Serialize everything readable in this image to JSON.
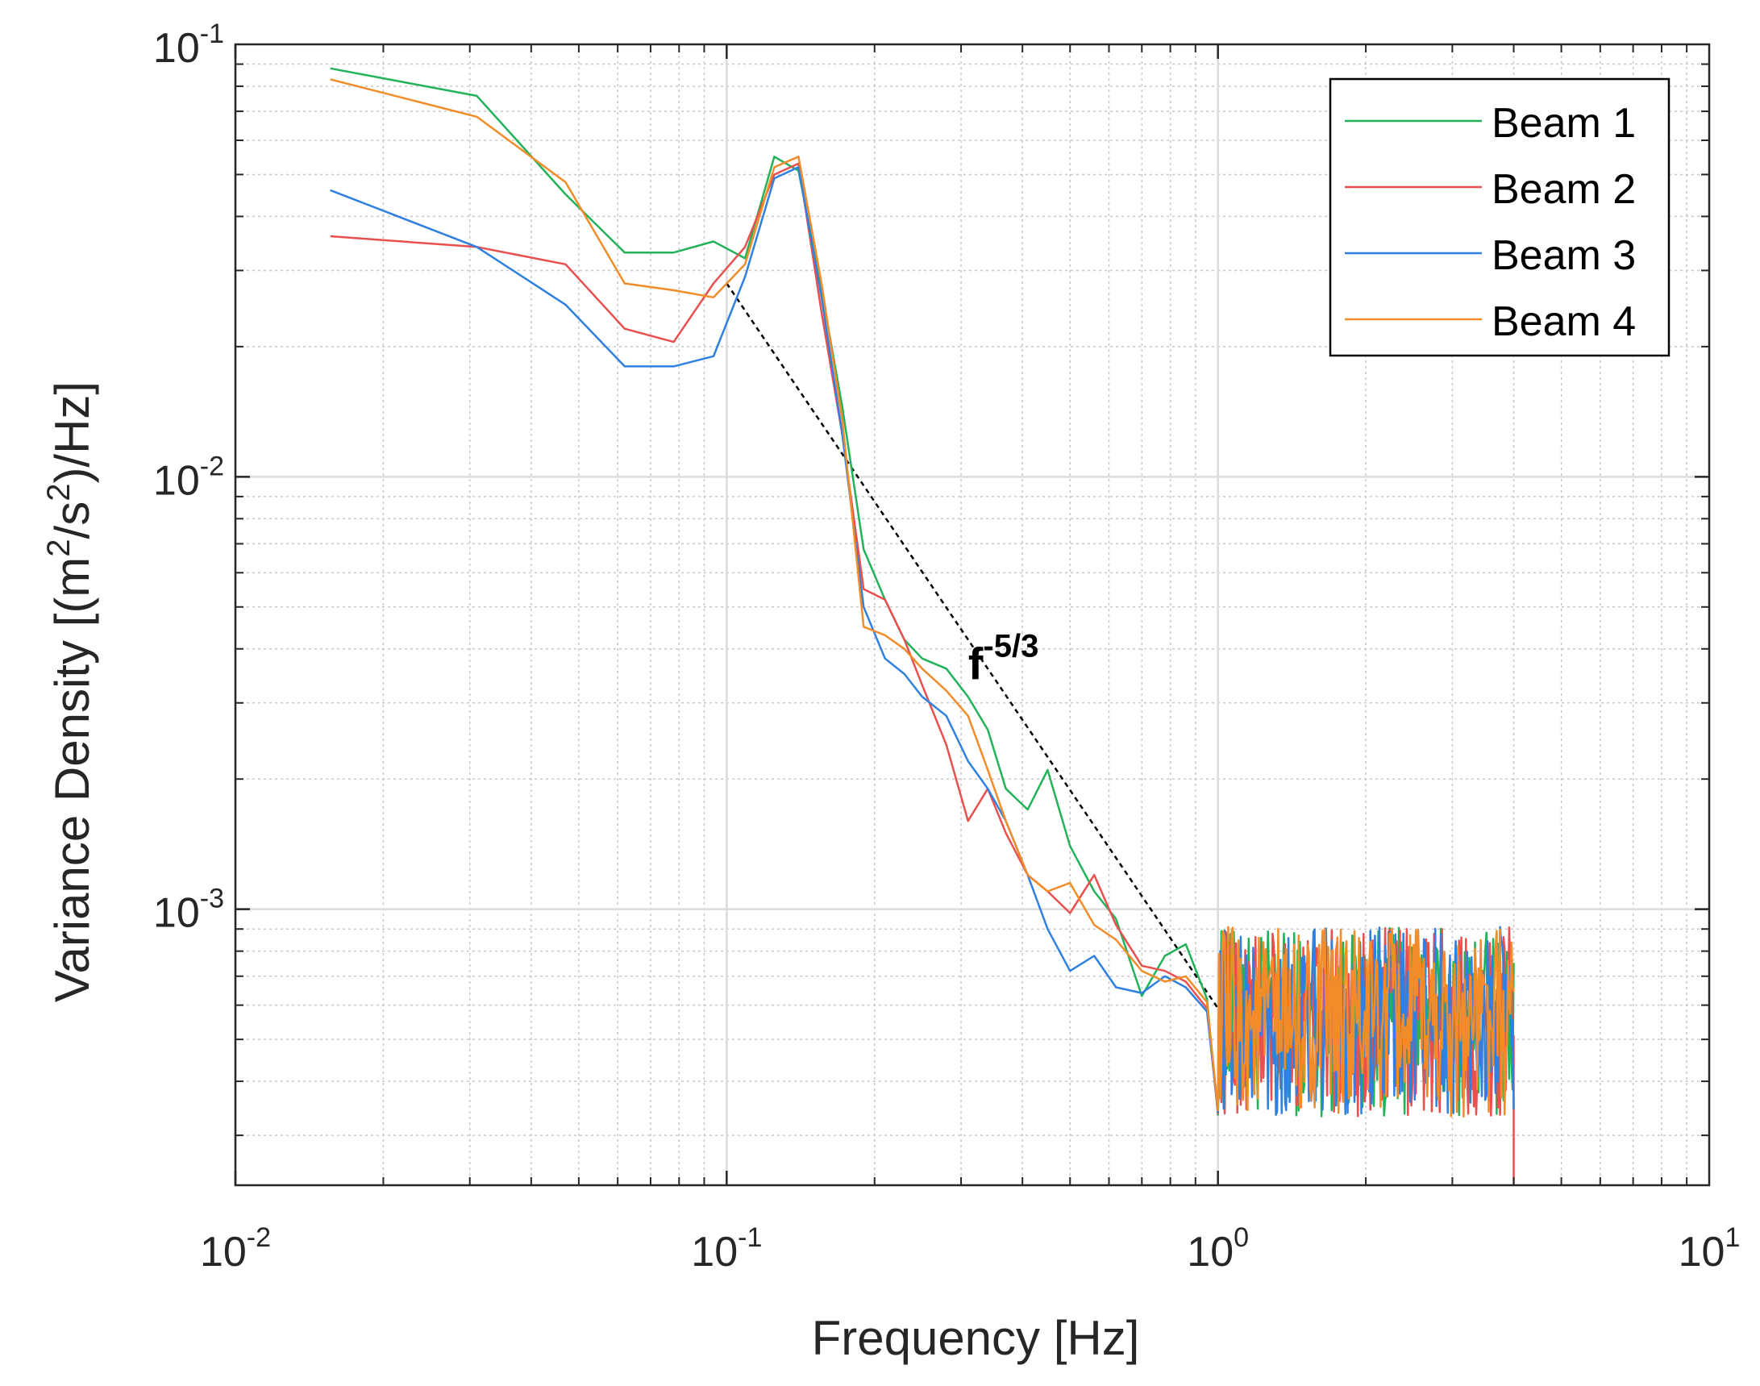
{
  "chart_data": {
    "type": "line",
    "xscale": "log",
    "yscale": "log",
    "xlabel": "Frequency [Hz]",
    "ylabel_parts": [
      "Variance Density [(m",
      "2",
      "/s",
      "2",
      ")/Hz]"
    ],
    "xlim": [
      0.01,
      10
    ],
    "ylim": [
      0.00023,
      0.1
    ],
    "grid": true,
    "minor_grid": true,
    "x_ticks": [
      {
        "base": "10",
        "exp": "-2",
        "value": 0.01
      },
      {
        "base": "10",
        "exp": "-1",
        "value": 0.1
      },
      {
        "base": "10",
        "exp": "0",
        "value": 1
      },
      {
        "base": "10",
        "exp": "1",
        "value": 10
      }
    ],
    "y_ticks": [
      {
        "base": "10",
        "exp": "-3",
        "value": 0.001
      },
      {
        "base": "10",
        "exp": "-2",
        "value": 0.01
      },
      {
        "base": "10",
        "exp": "-1",
        "value": 0.1
      }
    ],
    "legend_position": "top-right",
    "annotation": {
      "base": "f",
      "exp": "-5/3",
      "x": 0.31,
      "y": 0.0034
    },
    "reference_line": {
      "label": "f-5/3 slope",
      "color": "#000000",
      "x": [
        0.1,
        1.0
      ],
      "y": [
        0.028,
        0.00059
      ]
    },
    "noise_range": {
      "x_start": 1.0,
      "x_end": 4.0,
      "y_center": 0.00055,
      "spread": 0.22
    },
    "series": [
      {
        "name": "Beam 1",
        "color": "#22B35A",
        "x": [
          0.0156,
          0.031,
          0.047,
          0.062,
          0.078,
          0.094,
          0.109,
          0.125,
          0.14,
          0.156,
          0.172,
          0.19,
          0.21,
          0.23,
          0.25,
          0.28,
          0.31,
          0.34,
          0.37,
          0.41,
          0.45,
          0.5,
          0.56,
          0.62,
          0.7,
          0.78,
          0.86,
          0.95
        ],
        "y": [
          0.088,
          0.076,
          0.045,
          0.033,
          0.033,
          0.035,
          0.032,
          0.055,
          0.051,
          0.027,
          0.0145,
          0.0068,
          0.0052,
          0.0042,
          0.0038,
          0.0036,
          0.0031,
          0.0026,
          0.0019,
          0.0017,
          0.0021,
          0.0014,
          0.0011,
          0.00095,
          0.00063,
          0.00078,
          0.00083,
          0.00062
        ]
      },
      {
        "name": "Beam 2",
        "color": "#EA4F4F",
        "x": [
          0.0156,
          0.031,
          0.047,
          0.062,
          0.078,
          0.094,
          0.109,
          0.125,
          0.14,
          0.156,
          0.172,
          0.19,
          0.21,
          0.23,
          0.25,
          0.28,
          0.31,
          0.34,
          0.37,
          0.41,
          0.45,
          0.5,
          0.56,
          0.62,
          0.7,
          0.78,
          0.86,
          0.95
        ],
        "y": [
          0.036,
          0.034,
          0.031,
          0.022,
          0.0205,
          0.028,
          0.034,
          0.05,
          0.053,
          0.024,
          0.0125,
          0.0055,
          0.0052,
          0.0042,
          0.0033,
          0.0024,
          0.0016,
          0.0019,
          0.0015,
          0.0012,
          0.0011,
          0.00098,
          0.0012,
          0.00092,
          0.00074,
          0.00072,
          0.00068,
          0.00059
        ]
      },
      {
        "name": "Beam 3",
        "color": "#2F80E0",
        "x": [
          0.0156,
          0.031,
          0.047,
          0.062,
          0.078,
          0.094,
          0.109,
          0.125,
          0.14,
          0.156,
          0.172,
          0.19,
          0.21,
          0.23,
          0.25,
          0.28,
          0.31,
          0.34,
          0.37,
          0.41,
          0.45,
          0.5,
          0.56,
          0.62,
          0.7,
          0.78,
          0.86,
          0.95
        ],
        "y": [
          0.046,
          0.034,
          0.025,
          0.018,
          0.018,
          0.019,
          0.029,
          0.049,
          0.052,
          0.026,
          0.0125,
          0.005,
          0.0038,
          0.0035,
          0.0031,
          0.0028,
          0.0022,
          0.0019,
          0.0016,
          0.0012,
          0.0009,
          0.00072,
          0.00078,
          0.00066,
          0.00064,
          0.0007,
          0.00066,
          0.00058
        ]
      },
      {
        "name": "Beam 4",
        "color": "#F28C28",
        "x": [
          0.0156,
          0.031,
          0.047,
          0.062,
          0.078,
          0.094,
          0.109,
          0.125,
          0.14,
          0.156,
          0.172,
          0.19,
          0.21,
          0.23,
          0.25,
          0.28,
          0.31,
          0.34,
          0.37,
          0.41,
          0.45,
          0.5,
          0.56,
          0.62,
          0.7,
          0.78,
          0.86,
          0.95
        ],
        "y": [
          0.083,
          0.068,
          0.048,
          0.028,
          0.027,
          0.026,
          0.031,
          0.052,
          0.055,
          0.028,
          0.0135,
          0.0045,
          0.0043,
          0.004,
          0.0036,
          0.0032,
          0.0028,
          0.0021,
          0.0016,
          0.0012,
          0.0011,
          0.00115,
          0.00092,
          0.00085,
          0.00072,
          0.00068,
          0.0007,
          0.00061
        ]
      }
    ]
  }
}
